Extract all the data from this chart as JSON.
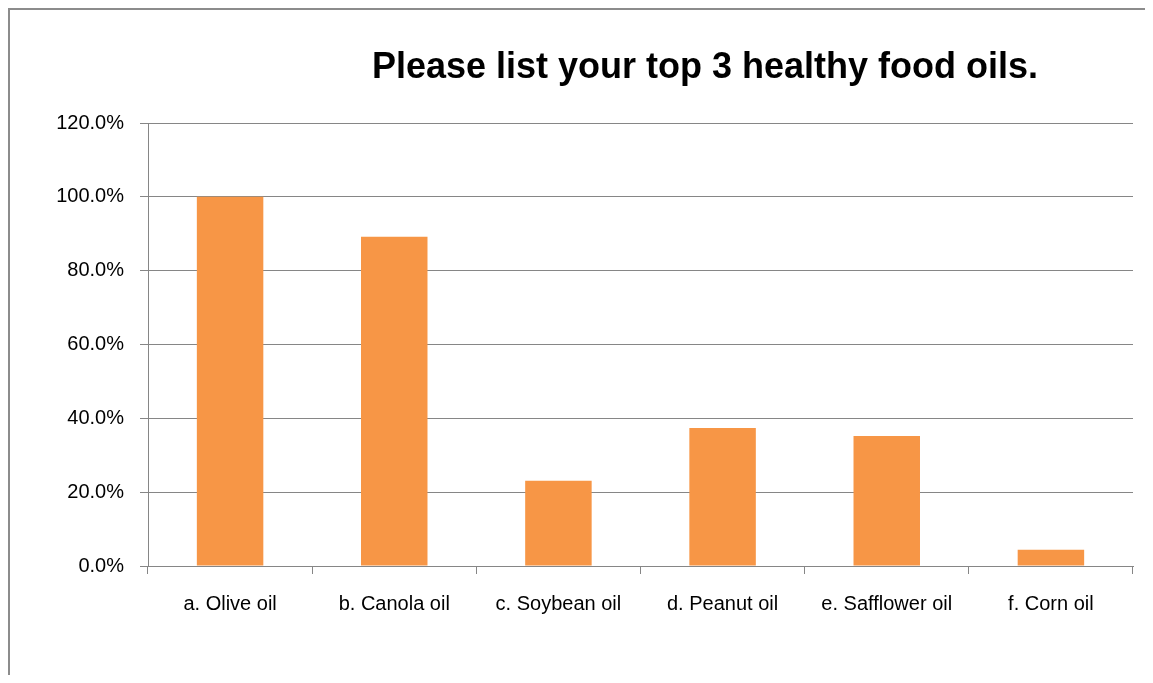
{
  "chart_data": {
    "type": "bar",
    "title": "Please list your top 3 healthy food oils.",
    "categories": [
      "a. Olive oil",
      "b. Canola oil",
      "c. Soybean oil",
      "d. Peanut oil",
      "e. Safflower oil",
      "f. Corn oil"
    ],
    "values": [
      100,
      89.2,
      23.1,
      37.4,
      35.2,
      4.4
    ],
    "color": "#f79646",
    "ylim": [
      0,
      120
    ],
    "yticks": [
      {
        "value": 0,
        "label": "0.0%"
      },
      {
        "value": 20,
        "label": "20.0%"
      },
      {
        "value": 40,
        "label": "40.0%"
      },
      {
        "value": 60,
        "label": "60.0%"
      },
      {
        "value": 80,
        "label": "80.0%"
      },
      {
        "value": 100,
        "label": "100.0%"
      },
      {
        "value": 120,
        "label": "120.0%"
      }
    ],
    "grid": "y"
  }
}
